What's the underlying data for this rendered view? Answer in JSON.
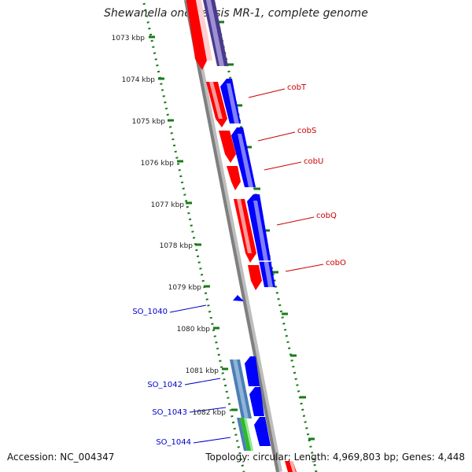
{
  "title": "Shewanella oneidensis MR-1, complete genome",
  "accession": "Accession: NC_004347",
  "topology": "Topology: circular; Length: 4,969,803 bp; Genes: 4,448",
  "colors": {
    "forward_gene": "#ff0000",
    "reverse_gene": "#0000ff",
    "dark_gene": "#4a3a8c",
    "steel_gene": "#4a7fb5",
    "green_gene": "#2eb82e",
    "scale_ticks": "#1a7a1a",
    "backbone": "#808080",
    "gene_labels": "#cc0000",
    "locus_labels": "#0000cc"
  },
  "scale_labels": [
    "1073 kbp",
    "1074 kbp",
    "1075 kbp",
    "1076 kbp",
    "1077 kbp",
    "1078 kbp",
    "1079 kbp",
    "1080 kbp",
    "1081 kbp",
    "1082 kbp"
  ],
  "gene_labels": [
    "cobT",
    "cobS",
    "cobU",
    "cobQ",
    "cobO"
  ],
  "locus_labels": [
    "SO_1040",
    "SO_1042",
    "SO_1043",
    "SO_1044"
  ]
}
